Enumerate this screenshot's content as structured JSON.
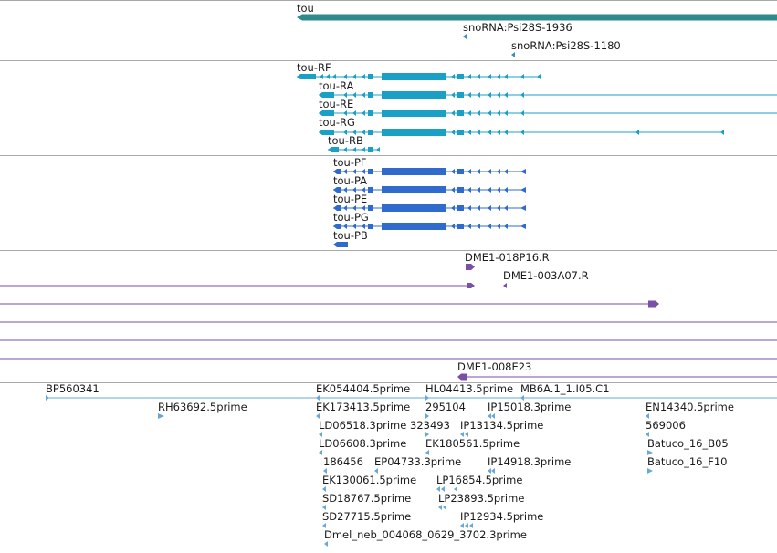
{
  "colors": {
    "gene": "#2e8b8b",
    "snorna": "#3f8faf",
    "transcript": "#1aa0c4",
    "protein": "#2f6bcc",
    "clone": "#7a4fa8",
    "est": "#6aa8d8",
    "separator": "#a8a8a8"
  },
  "tracks": {
    "gene": {
      "label": "tou",
      "snornas": [
        "snoRNA:Psi28S-1936",
        "snoRNA:Psi28S-1180"
      ]
    },
    "transcripts": [
      "tou-RF",
      "tou-RA",
      "tou-RE",
      "tou-RG",
      "tou-RB"
    ],
    "proteins": [
      "tou-PF",
      "tou-PA",
      "tou-PE",
      "tou-PG",
      "tou-PB"
    ],
    "clones": [
      "DME1-018P16.R",
      "DME1-003A07.R",
      "DME1-008E23"
    ],
    "ests": [
      "BP560341",
      "RH63692.5prime",
      "EK054404.5prime",
      "HL04413.5prime",
      "MB6A.1_1.I05.C1",
      "EK173413.5prime",
      "295104",
      "IP15018.3prime",
      "EN14340.5prime",
      "LD06518.3prime",
      "323493",
      "IP13134.5prime",
      "569006",
      "LD06608.3prime",
      "EK180561.5prime",
      "Batuco_16_B05",
      "186456",
      "EP04733.3prime",
      "IP14918.3prime",
      "Batuco_16_F10",
      "EK130061.5prime",
      "LP16854.5prime",
      "SD18767.5prime",
      "LP23893.5prime",
      "SD27715.5prime",
      "IP12934.5prime",
      "Dmel_neb_004068_0629_3702.3prime"
    ]
  }
}
